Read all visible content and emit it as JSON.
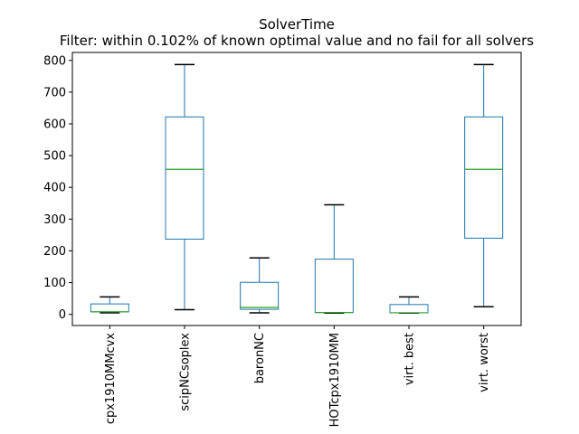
{
  "chart_data": {
    "type": "box",
    "title": "SolverTime",
    "subtitle": "Filter: within 0.102% of known optimal value and no fail for all solvers",
    "xlabel": "",
    "ylabel": "",
    "ylim": [
      -35,
      825
    ],
    "yticks": [
      0,
      100,
      200,
      300,
      400,
      500,
      600,
      700,
      800
    ],
    "grid": false,
    "categories": [
      "cpx1910MMcvx",
      "scipNCsoplex",
      "baronNC",
      "HOTcpx1910MM",
      "virt. best",
      "virt. worst"
    ],
    "boxes": [
      {
        "whisker_low": 5,
        "q1": 8,
        "median": 8,
        "q3": 33,
        "whisker_high": 55
      },
      {
        "whisker_low": 15,
        "q1": 237,
        "median": 457,
        "q3": 622,
        "whisker_high": 787
      },
      {
        "whisker_low": 5,
        "q1": 16,
        "median": 22,
        "q3": 101,
        "whisker_high": 178
      },
      {
        "whisker_low": 4,
        "q1": 6,
        "median": 6,
        "q3": 174,
        "whisker_high": 345
      },
      {
        "whisker_low": 4,
        "q1": 5,
        "median": 5,
        "q3": 31,
        "whisker_high": 55
      },
      {
        "whisker_low": 24,
        "q1": 240,
        "median": 457,
        "q3": 622,
        "whisker_high": 787
      }
    ],
    "colors": {
      "box": "#1f77b4",
      "median": "#2ca02c",
      "whisker_cap": "#000000"
    }
  }
}
